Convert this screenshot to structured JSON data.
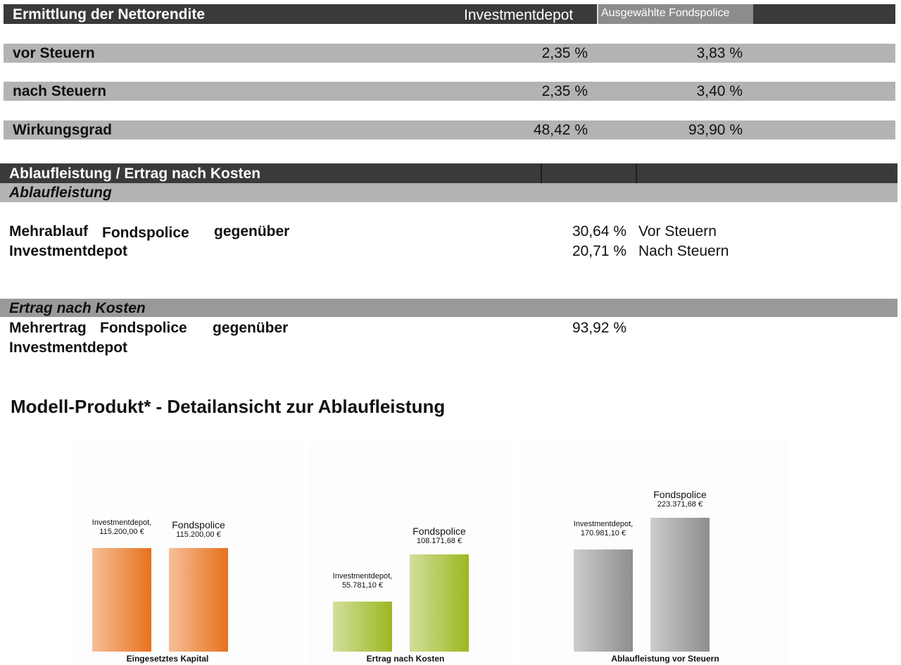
{
  "net": {
    "title": "Ermittlung der Nettorendite",
    "col1": "Investmentdepot",
    "col2": "Ausgewählte Fondspolice",
    "rows": [
      {
        "label": "vor Steuern",
        "v1": "2,35 %",
        "v2": "3,83 %"
      },
      {
        "label": "nach Steuern",
        "v1": "2,35 %",
        "v2": "3,40 %"
      },
      {
        "label": "Wirkungsgrad",
        "v1": "48,42 %",
        "v2": "93,90 %"
      }
    ]
  },
  "ablauf": {
    "title": "Ablaufleistung / Ertrag nach Kosten",
    "section1": "Ablaufleistung",
    "mehrablauf_a": "Mehrablauf",
    "mehrablauf_b": "Fondspolice",
    "mehrablauf_c": "gegenüber",
    "mehrablauf_d": "Investmentdepot",
    "val_vor": "30,64 %",
    "txt_vor": "Vor Steuern",
    "val_nach": "20,71 %",
    "txt_nach": "Nach Steuern",
    "section2": "Ertrag nach Kosten",
    "mehrertrag_a": "Mehrertrag",
    "mehrertrag_b": "Fondspolice",
    "mehrertrag_c": "gegenüber",
    "mehrertrag_d": "Investmentdepot",
    "val_ertrag": "93,92 %"
  },
  "detail_title": "Modell-Produkt* - Detailansicht zur Ablaufleistung",
  "colors": {
    "orange": "#e8711c",
    "green": "#9bb820",
    "gray": "#8e8e8e"
  },
  "chart_data": [
    {
      "type": "bar",
      "title": "Eingesetztes Kapital",
      "categories": [
        "Investmentdepot",
        "Fondspolice"
      ],
      "values": [
        115200.0,
        115200.0
      ],
      "value_labels": [
        "115.200,00 €",
        "115.200,00 €"
      ],
      "name_labels": [
        "Investmentdepot,",
        "Fondspolice"
      ]
    },
    {
      "type": "bar",
      "title": "Ertrag nach Kosten",
      "categories": [
        "Investmentdepot",
        "Fondspolice"
      ],
      "values": [
        55781.1,
        108171.68
      ],
      "value_labels": [
        "55.781,10 €",
        "108.171,68 €"
      ],
      "name_labels": [
        "Investmentdepot,",
        "Fondspolice"
      ]
    },
    {
      "type": "bar",
      "title": "Ablaufleistung vor Steuern",
      "categories": [
        "Investmentdepot",
        "Fondspolice"
      ],
      "values": [
        170981.1,
        223371.68
      ],
      "value_labels": [
        "170.981,10 €",
        "223.371,68 €"
      ],
      "name_labels": [
        "Investmentdepot,",
        "Fondspolice"
      ]
    }
  ]
}
